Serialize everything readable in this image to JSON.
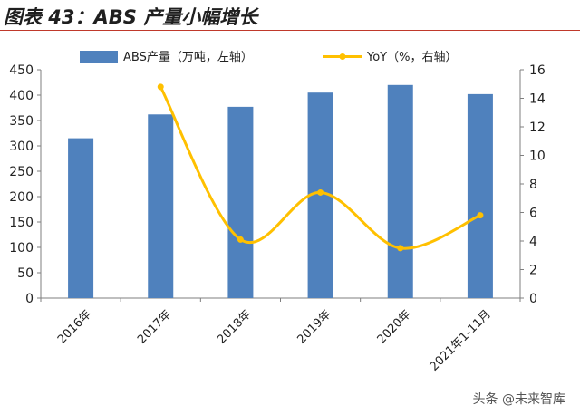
{
  "chart_data": {
    "type": "bar",
    "title": "图表 43：ABS 产量小幅增长",
    "categories": [
      "2016年",
      "2017年",
      "2018年",
      "2019年",
      "2020年",
      "2021年1-11月"
    ],
    "series": [
      {
        "name": "ABS产量（万吨，左轴）",
        "type": "bar",
        "axis": "left",
        "values": [
          315,
          362,
          377,
          405,
          420,
          402
        ],
        "color": "#4f81bd"
      },
      {
        "name": "YoY（%，右轴）",
        "type": "line",
        "axis": "right",
        "values": [
          null,
          14.8,
          4.1,
          7.4,
          3.5,
          5.8
        ],
        "color": "#ffc000"
      }
    ],
    "y_left": {
      "min": 0,
      "max": 450,
      "ticks": [
        0,
        50,
        100,
        150,
        200,
        250,
        300,
        350,
        400,
        450
      ]
    },
    "y_right": {
      "min": 0,
      "max": 16,
      "ticks": [
        0,
        2,
        4,
        6,
        8,
        10,
        12,
        14,
        16
      ]
    },
    "legend_position": "top",
    "grid": false
  },
  "watermark": "头条 @未来智库"
}
